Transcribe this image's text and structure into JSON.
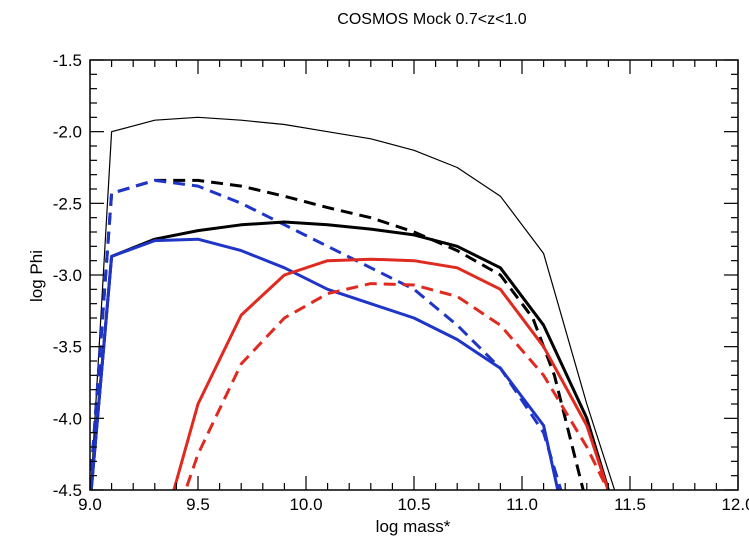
{
  "chart_data": {
    "type": "line",
    "title": "COSMOS Mock  0.7<z<1.0",
    "xlabel": "log mass*",
    "ylabel": "log Phi",
    "xlim": [
      9.0,
      12.0
    ],
    "ylim": [
      -4.5,
      -1.5
    ],
    "xticks": [
      {
        "value": 9.0,
        "label": "9.0"
      },
      {
        "value": 9.5,
        "label": "9.5"
      },
      {
        "value": 10.0,
        "label": "10.0"
      },
      {
        "value": 10.5,
        "label": "10.5"
      },
      {
        "value": 11.0,
        "label": "11.0"
      },
      {
        "value": 11.5,
        "label": "11.5"
      },
      {
        "value": 12.0,
        "label": "12.0"
      }
    ],
    "yticks": [
      {
        "value": -1.5,
        "label": "-1.5"
      },
      {
        "value": -2.0,
        "label": "-2.0"
      },
      {
        "value": -2.5,
        "label": "-2.5"
      },
      {
        "value": -3.0,
        "label": "-3.0"
      },
      {
        "value": -3.5,
        "label": "-3.5"
      },
      {
        "value": -4.0,
        "label": "-4.0"
      },
      {
        "value": -4.5,
        "label": "-4.5"
      }
    ],
    "grid": false,
    "legend": "none",
    "series": [
      {
        "color": "#000000",
        "dash": "solid",
        "weight": "thin",
        "x": [
          9.0,
          9.1,
          9.3,
          9.5,
          9.7,
          9.9,
          10.1,
          10.3,
          10.5,
          10.7,
          10.9,
          11.1,
          11.3,
          11.45
        ],
        "y": [
          -4.6,
          -2.0,
          -1.92,
          -1.9,
          -1.92,
          -1.95,
          -2.0,
          -2.05,
          -2.13,
          -2.25,
          -2.45,
          -2.85,
          -3.9,
          -4.6
        ]
      },
      {
        "color": "#000000",
        "dash": "dashed",
        "weight": "thick",
        "x": [
          9.0,
          9.1,
          9.3,
          9.5,
          9.7,
          9.9,
          10.1,
          10.3,
          10.5,
          10.7,
          10.9,
          11.05,
          11.15,
          11.25,
          11.3
        ],
        "y": [
          -4.5,
          -2.43,
          -2.34,
          -2.34,
          -2.38,
          -2.45,
          -2.53,
          -2.6,
          -2.7,
          -2.83,
          -3.0,
          -3.3,
          -3.7,
          -4.3,
          -4.6
        ]
      },
      {
        "color": "#1f35c8",
        "dash": "dashed",
        "weight": "thick",
        "x": [
          9.0,
          9.1,
          9.3,
          9.5,
          9.7,
          9.9,
          10.1,
          10.3,
          10.5,
          10.7,
          10.9,
          11.1,
          11.2
        ],
        "y": [
          -4.5,
          -2.43,
          -2.34,
          -2.38,
          -2.5,
          -2.65,
          -2.8,
          -2.95,
          -3.1,
          -3.35,
          -3.65,
          -4.1,
          -4.6
        ]
      },
      {
        "color": "#000000",
        "dash": "solid",
        "weight": "thick",
        "x": [
          9.0,
          9.1,
          9.3,
          9.5,
          9.7,
          9.9,
          10.1,
          10.3,
          10.5,
          10.7,
          10.9,
          11.1,
          11.3,
          11.42
        ],
        "y": [
          -4.6,
          -2.87,
          -2.75,
          -2.69,
          -2.65,
          -2.63,
          -2.65,
          -2.68,
          -2.72,
          -2.8,
          -2.95,
          -3.35,
          -4.0,
          -4.6
        ]
      },
      {
        "color": "#1f35c8",
        "dash": "solid",
        "weight": "thick",
        "x": [
          9.0,
          9.1,
          9.3,
          9.5,
          9.7,
          9.9,
          10.1,
          10.3,
          10.5,
          10.7,
          10.9,
          11.1,
          11.18
        ],
        "y": [
          -4.6,
          -2.87,
          -2.76,
          -2.75,
          -2.83,
          -2.95,
          -3.1,
          -3.2,
          -3.3,
          -3.45,
          -3.65,
          -4.05,
          -4.6
        ]
      },
      {
        "color": "#e02a20",
        "dash": "solid",
        "weight": "thick",
        "x": [
          9.37,
          9.5,
          9.7,
          9.9,
          10.1,
          10.3,
          10.5,
          10.7,
          10.9,
          11.1,
          11.3,
          11.42
        ],
        "y": [
          -4.6,
          -3.9,
          -3.28,
          -3.0,
          -2.9,
          -2.89,
          -2.9,
          -2.95,
          -3.1,
          -3.5,
          -4.05,
          -4.6
        ]
      },
      {
        "color": "#e02a20",
        "dash": "dashed",
        "weight": "thick",
        "x": [
          9.42,
          9.5,
          9.7,
          9.9,
          10.1,
          10.3,
          10.5,
          10.7,
          10.9,
          11.1,
          11.3,
          11.43
        ],
        "y": [
          -4.6,
          -4.25,
          -3.62,
          -3.3,
          -3.13,
          -3.06,
          -3.07,
          -3.15,
          -3.35,
          -3.7,
          -4.2,
          -4.6
        ]
      }
    ]
  }
}
